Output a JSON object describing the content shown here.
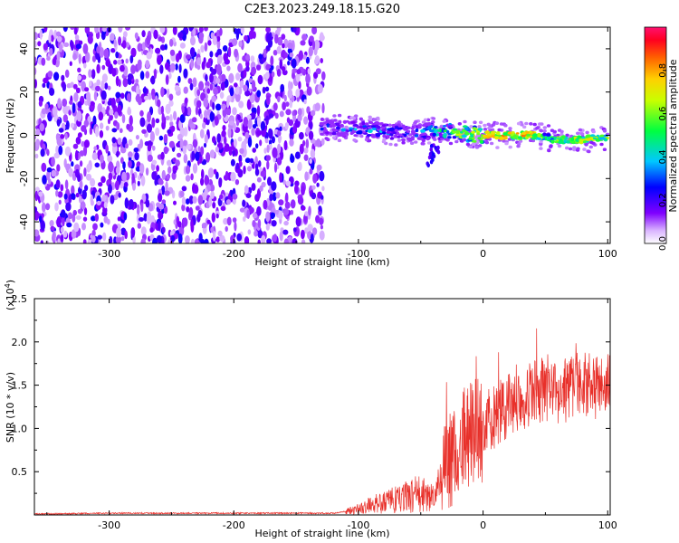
{
  "title": "C2E3.2023.249.18.15.G20",
  "chart_data": [
    {
      "type": "heatmap",
      "xlabel": "Height of straight line (km)",
      "ylabel": "Frequency (Hz)",
      "xlim": [
        -360,
        102
      ],
      "ylim": [
        -50,
        50
      ],
      "xticks": [
        -300,
        -200,
        -100,
        0,
        100
      ],
      "yticks": [
        -40,
        -20,
        0,
        20,
        40
      ],
      "colorbar": {
        "label": "Normalized spectral amplitude",
        "range": [
          0.0,
          1.0
        ],
        "ticks": [
          0.0,
          0.2,
          0.4,
          0.6,
          0.8
        ]
      },
      "noise_region_x": [
        -360,
        -128
      ],
      "ridge": {
        "x": [
          -130,
          -100,
          -80,
          -60,
          -40,
          -20,
          0,
          20,
          40,
          50,
          60,
          80,
          100
        ],
        "frequency": [
          4,
          3,
          2,
          1,
          2,
          1,
          0,
          0,
          0,
          -1,
          -2,
          -2,
          -1
        ],
        "amplitude": [
          0.4,
          0.45,
          0.45,
          0.4,
          0.55,
          0.75,
          0.9,
          0.9,
          0.9,
          0.6,
          0.75,
          0.8,
          0.7
        ]
      }
    },
    {
      "type": "line",
      "xlabel": "Height of straight line (km)",
      "ylabel": "SNR (10 * v/v)",
      "yscale_label": "(x10",
      "yscale_exp": "4",
      "yscale_close": ")",
      "xlim": [
        -360,
        102
      ],
      "ylim": [
        0,
        2.5
      ],
      "xticks": [
        -300,
        -200,
        -100,
        0,
        100
      ],
      "yticks": [
        0.5,
        1.0,
        1.5,
        2.0,
        2.5
      ],
      "ytick_labels": [
        "0.5",
        "1.0",
        "1.5",
        "2.0",
        "2.5"
      ],
      "color": "#e8302a",
      "series": [
        {
          "name": "SNR (x10^4)",
          "x": [
            -360,
            -300,
            -200,
            -120,
            -105,
            -90,
            -80,
            -70,
            -60,
            -50,
            -40,
            -35,
            -30,
            -25,
            -20,
            -15,
            -10,
            -5,
            0,
            10,
            20,
            30,
            40,
            50,
            60,
            70,
            80,
            90,
            100
          ],
          "values": [
            0.01,
            0.02,
            0.02,
            0.02,
            0.05,
            0.12,
            0.14,
            0.18,
            0.22,
            0.25,
            0.2,
            0.3,
            0.6,
            0.75,
            0.55,
            0.9,
            0.95,
            1.1,
            1.05,
            1.15,
            1.25,
            1.35,
            1.4,
            1.45,
            1.35,
            1.5,
            1.55,
            1.45,
            1.5
          ]
        }
      ]
    }
  ]
}
